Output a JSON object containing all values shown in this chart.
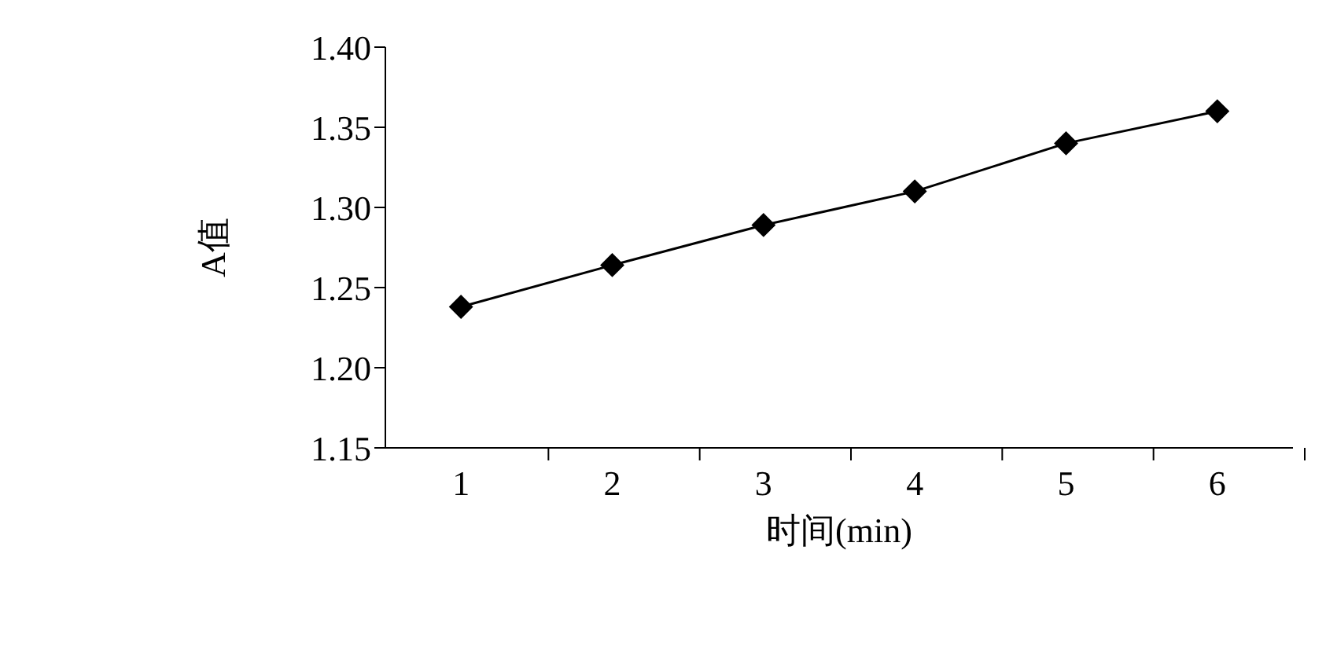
{
  "chart_data": {
    "type": "line",
    "xlabel": "时间(min)",
    "ylabel": "A值",
    "categories": [
      "1",
      "2",
      "3",
      "4",
      "5",
      "6"
    ],
    "series": [
      {
        "color": "#000000",
        "values": [
          1.238,
          1.264,
          1.289,
          1.31,
          1.34,
          1.36
        ]
      }
    ],
    "ylim": [
      1.15,
      1.4
    ],
    "yticks": [
      {
        "value": 1.15,
        "label": "1.15"
      },
      {
        "value": 1.2,
        "label": "1.20"
      },
      {
        "value": 1.25,
        "label": "1.25"
      },
      {
        "value": 1.3,
        "label": "1.30"
      },
      {
        "value": 1.35,
        "label": "1.35"
      },
      {
        "value": 1.4,
        "label": "1.40"
      }
    ],
    "grid": false,
    "legend": false,
    "marker": "diamond",
    "line_style": "solid"
  }
}
